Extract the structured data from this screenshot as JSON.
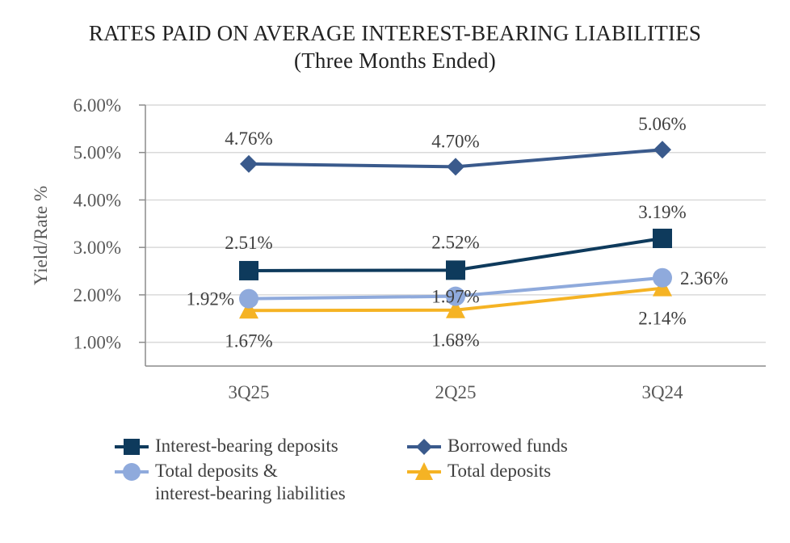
{
  "chart_data": {
    "type": "line",
    "title": "RATES PAID ON AVERAGE INTEREST-BEARING LIABILITIES",
    "subtitle": "(Three Months Ended)",
    "xlabel": "",
    "ylabel": "Yield/Rate %",
    "categories": [
      "3Q25",
      "2Q25",
      "3Q24"
    ],
    "ylim": [
      0.5,
      6.0
    ],
    "yticks": [
      1.0,
      2.0,
      3.0,
      4.0,
      5.0,
      6.0
    ],
    "ytick_labels": [
      "1.00%",
      "2.00%",
      "3.00%",
      "4.00%",
      "5.00%",
      "6.00%"
    ],
    "grid": true,
    "legend_position": "bottom",
    "series": [
      {
        "name": "Interest-bearing deposits",
        "values": [
          2.51,
          2.52,
          3.19
        ],
        "labels": [
          "2.51%",
          "2.52%",
          "3.19%"
        ],
        "color": "#0e3a5c",
        "marker": "square"
      },
      {
        "name": "Borrowed funds",
        "values": [
          4.76,
          4.7,
          5.06
        ],
        "labels": [
          "4.76%",
          "4.70%",
          "5.06%"
        ],
        "color": "#3a5a8c",
        "marker": "diamond"
      },
      {
        "name": "Total deposits & interest-bearing liabilities",
        "legend_lines": [
          "Total deposits &",
          "interest-bearing liabilities"
        ],
        "values": [
          1.92,
          1.97,
          2.36
        ],
        "labels": [
          "1.92%",
          "1.97%",
          "2.36%"
        ],
        "color": "#8faadc",
        "marker": "circle"
      },
      {
        "name": "Total deposits",
        "values": [
          1.67,
          1.68,
          2.14
        ],
        "labels": [
          "1.67%",
          "1.68%",
          "2.14%"
        ],
        "color": "#f5b324",
        "marker": "triangle"
      }
    ]
  }
}
